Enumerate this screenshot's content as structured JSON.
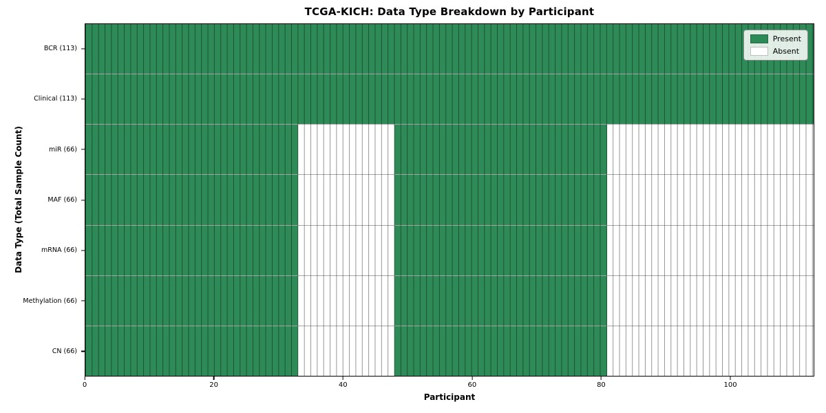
{
  "chart_data": {
    "type": "heatmap",
    "title": "TCGA-KICH: Data Type Breakdown by Participant",
    "xlabel": "Participant",
    "ylabel": "Data Type (Total Sample Count)",
    "n_participants": 113,
    "x_ticks": [
      0,
      20,
      40,
      60,
      80,
      100
    ],
    "grid": false,
    "legend_position": "upper right",
    "colors": {
      "present": "#2e8b57",
      "absent": "#ffffff"
    },
    "legend": [
      {
        "label": "Present",
        "state": "present"
      },
      {
        "label": "Absent",
        "state": "absent"
      }
    ],
    "rows": [
      {
        "label": "BCR (113)",
        "total_samples": 113,
        "segments": [
          {
            "start": 0,
            "end": 113,
            "state": "present"
          }
        ]
      },
      {
        "label": "Clinical (113)",
        "total_samples": 113,
        "segments": [
          {
            "start": 0,
            "end": 113,
            "state": "present"
          }
        ]
      },
      {
        "label": "miR (66)",
        "total_samples": 66,
        "segments": [
          {
            "start": 0,
            "end": 33,
            "state": "present"
          },
          {
            "start": 33,
            "end": 48,
            "state": "absent"
          },
          {
            "start": 48,
            "end": 81,
            "state": "present"
          },
          {
            "start": 81,
            "end": 113,
            "state": "absent"
          }
        ]
      },
      {
        "label": "MAF (66)",
        "total_samples": 66,
        "segments": [
          {
            "start": 0,
            "end": 33,
            "state": "present"
          },
          {
            "start": 33,
            "end": 48,
            "state": "absent"
          },
          {
            "start": 48,
            "end": 81,
            "state": "present"
          },
          {
            "start": 81,
            "end": 113,
            "state": "absent"
          }
        ]
      },
      {
        "label": "mRNA (66)",
        "total_samples": 66,
        "segments": [
          {
            "start": 0,
            "end": 33,
            "state": "present"
          },
          {
            "start": 33,
            "end": 48,
            "state": "absent"
          },
          {
            "start": 48,
            "end": 81,
            "state": "present"
          },
          {
            "start": 81,
            "end": 113,
            "state": "absent"
          }
        ]
      },
      {
        "label": "Methylation (66)",
        "total_samples": 66,
        "segments": [
          {
            "start": 0,
            "end": 33,
            "state": "present"
          },
          {
            "start": 33,
            "end": 48,
            "state": "absent"
          },
          {
            "start": 48,
            "end": 81,
            "state": "present"
          },
          {
            "start": 81,
            "end": 113,
            "state": "absent"
          }
        ]
      },
      {
        "label": "CN (66)",
        "total_samples": 66,
        "segments": [
          {
            "start": 0,
            "end": 33,
            "state": "present"
          },
          {
            "start": 33,
            "end": 48,
            "state": "absent"
          },
          {
            "start": 48,
            "end": 81,
            "state": "present"
          },
          {
            "start": 81,
            "end": 113,
            "state": "absent"
          }
        ]
      }
    ]
  }
}
